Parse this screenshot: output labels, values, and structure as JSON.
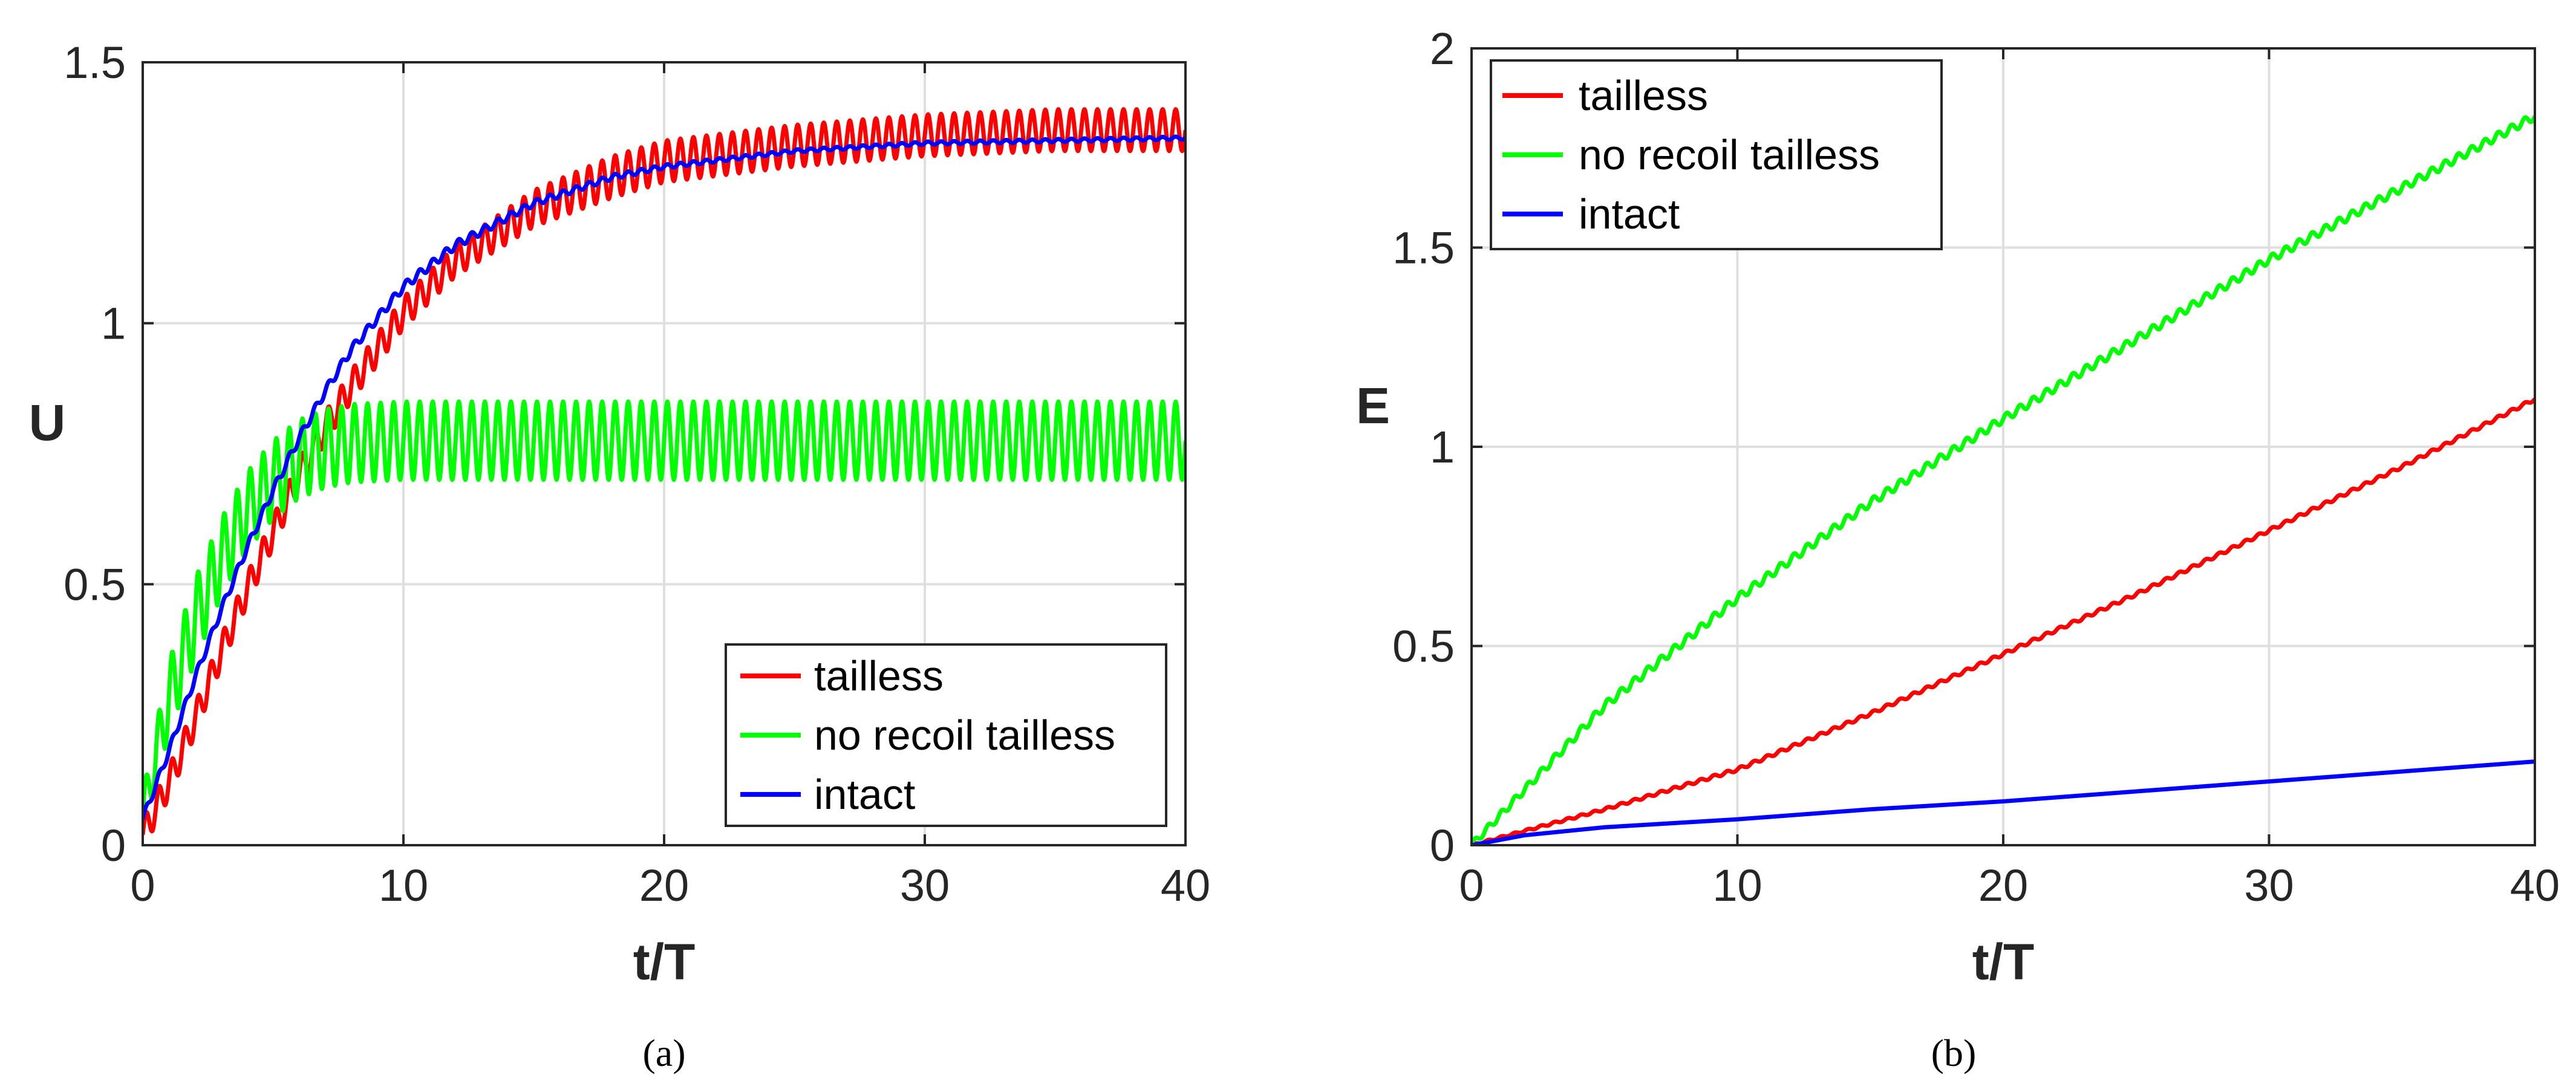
{
  "chart_data": [
    {
      "type": "line",
      "id": "a",
      "caption": "(a)",
      "xlabel": "t/T",
      "ylabel": "U",
      "xlim": [
        0,
        40
      ],
      "ylim": [
        0,
        1.5
      ],
      "xticks": [
        "0",
        "10",
        "20",
        "30",
        "40"
      ],
      "yticks": [
        "0",
        "0.5",
        "1",
        "1.5"
      ],
      "grid": true,
      "legend_position": "bottom-right",
      "series": [
        {
          "name": "tailless",
          "color": "#ff0000",
          "x": [
            0,
            1,
            2,
            3,
            4,
            5,
            6,
            7,
            8,
            10,
            12,
            15,
            18,
            20,
            25,
            30,
            35,
            40
          ],
          "values": [
            0.02,
            0.12,
            0.24,
            0.37,
            0.49,
            0.6,
            0.71,
            0.8,
            0.88,
            1.02,
            1.12,
            1.22,
            1.28,
            1.31,
            1.34,
            1.36,
            1.37,
            1.37
          ],
          "oscillation_amplitude": [
            0.03,
            0.03,
            0.03,
            0.03,
            0.03,
            0.03,
            0.03,
            0.03,
            0.03,
            0.03,
            0.03,
            0.035,
            0.04,
            0.04,
            0.04,
            0.04,
            0.04,
            0.04
          ]
        },
        {
          "name": "no recoil tailless",
          "color": "#00ff00",
          "x": [
            0,
            1,
            2,
            3,
            4,
            5,
            6,
            7,
            8,
            10,
            12,
            15,
            20,
            25,
            30,
            35,
            40
          ],
          "values": [
            0.06,
            0.28,
            0.43,
            0.55,
            0.64,
            0.7,
            0.74,
            0.76,
            0.77,
            0.775,
            0.775,
            0.775,
            0.775,
            0.775,
            0.775,
            0.775,
            0.775
          ],
          "oscillation_amplitude": [
            0.04,
            0.07,
            0.08,
            0.075,
            0.075,
            0.075,
            0.075,
            0.075,
            0.075,
            0.075,
            0.075,
            0.075,
            0.075,
            0.075,
            0.075,
            0.075,
            0.075
          ]
        },
        {
          "name": "intact",
          "color": "#0000ff",
          "x": [
            0,
            1,
            2,
            3,
            4,
            5,
            6,
            7,
            8,
            10,
            12,
            15,
            18,
            20,
            25,
            30,
            35,
            40
          ],
          "values": [
            0.05,
            0.18,
            0.32,
            0.45,
            0.57,
            0.68,
            0.78,
            0.87,
            0.95,
            1.07,
            1.15,
            1.23,
            1.28,
            1.3,
            1.33,
            1.345,
            1.35,
            1.355
          ],
          "oscillation_amplitude": [
            0.008,
            0.008,
            0.008,
            0.008,
            0.008,
            0.008,
            0.008,
            0.008,
            0.008,
            0.008,
            0.008,
            0.006,
            0.005,
            0.004,
            0.003,
            0.003,
            0.003,
            0.003
          ]
        }
      ]
    },
    {
      "type": "line",
      "id": "b",
      "caption": "(b)",
      "xlabel": "t/T",
      "ylabel": "E",
      "xlim": [
        0,
        40
      ],
      "ylim": [
        0,
        2
      ],
      "xticks": [
        "0",
        "10",
        "20",
        "30",
        "40"
      ],
      "yticks": [
        "0",
        "0.5",
        "1",
        "1.5",
        "2"
      ],
      "grid": true,
      "legend_position": "top-left",
      "series": [
        {
          "name": "tailless",
          "color": "#ff0000",
          "x": [
            0,
            5,
            10,
            15,
            20,
            25,
            30,
            35,
            40
          ],
          "values": [
            0,
            0.09,
            0.19,
            0.33,
            0.48,
            0.63,
            0.79,
            0.95,
            1.12
          ],
          "oscillation_amplitude": [
            0.002,
            0.003,
            0.004,
            0.004,
            0.004,
            0.004,
            0.004,
            0.004,
            0.004
          ]
        },
        {
          "name": "no recoil tailless",
          "color": "#00ff00",
          "x": [
            0,
            5,
            10,
            15,
            20,
            25,
            30,
            35,
            40
          ],
          "values": [
            0,
            0.35,
            0.62,
            0.86,
            1.07,
            1.27,
            1.47,
            1.65,
            1.83
          ],
          "oscillation_amplitude": [
            0.008,
            0.01,
            0.01,
            0.01,
            0.01,
            0.01,
            0.01,
            0.01,
            0.01
          ]
        },
        {
          "name": "intact",
          "color": "#0000ff",
          "x": [
            0,
            2,
            5,
            10,
            15,
            20,
            25,
            30,
            35,
            40
          ],
          "values": [
            0,
            0.025,
            0.045,
            0.065,
            0.09,
            0.11,
            0.135,
            0.16,
            0.185,
            0.21
          ],
          "oscillation_amplitude": [
            0,
            0,
            0,
            0,
            0,
            0,
            0,
            0,
            0,
            0
          ]
        }
      ]
    }
  ]
}
